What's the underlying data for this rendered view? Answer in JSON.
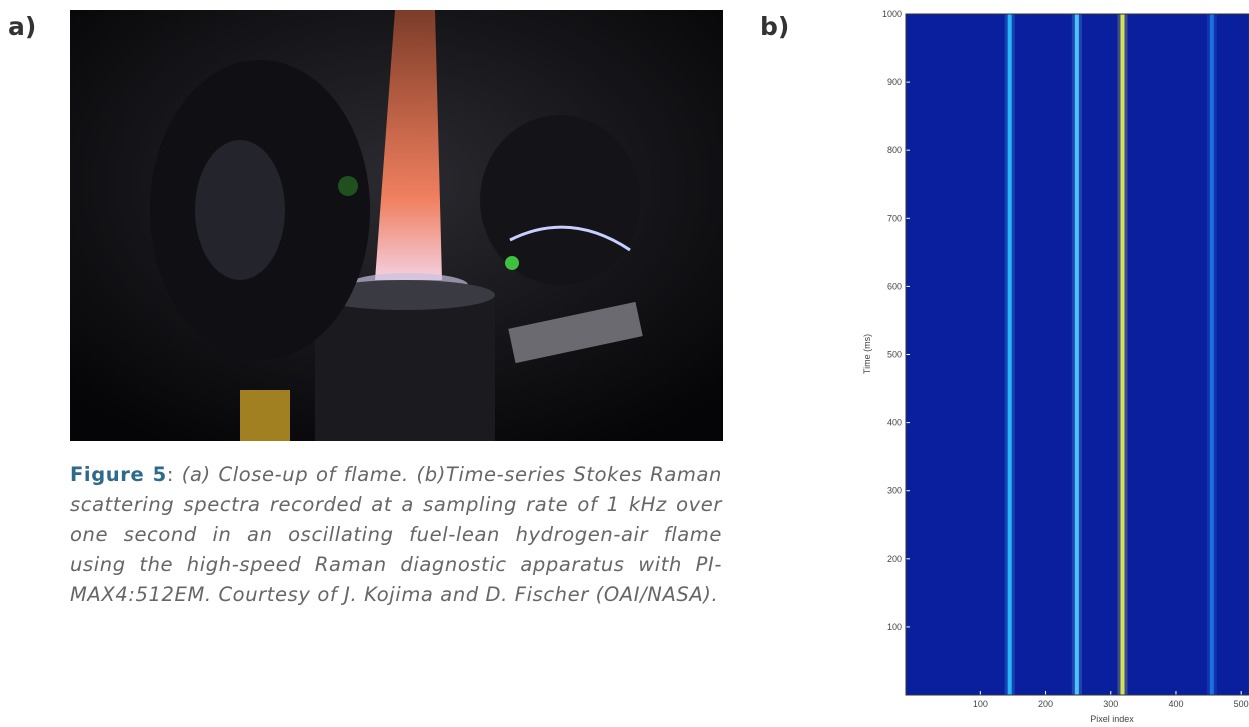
{
  "panel_a": {
    "label": "a)"
  },
  "panel_b": {
    "label": "b)"
  },
  "caption": {
    "figure": "Figure 5",
    "separator": ":",
    "text": "(a) Close-up of flame. (b)Time-series Stokes Raman scattering spectra recorded at a sampling rate of 1 kHz over one second in an oscillating fuel-lean hydrogen-air flame using the high-speed Raman diagnostic apparatus with PI-MAX4:512EM. Courtesy of J. Kojima and D. Fischer (OAI/NASA)."
  },
  "chart_data": {
    "type": "heatmap-lines",
    "xlabel": "Pixel index",
    "ylabel": "Time (ms)",
    "xlim": [
      -14,
      512
    ],
    "ylim": [
      0,
      1000
    ],
    "xticks": [
      100,
      200,
      300,
      400,
      500
    ],
    "yticks": [
      100,
      200,
      300,
      400,
      500,
      600,
      700,
      800,
      900,
      1000
    ],
    "background": "#0a1f9e",
    "series": [
      {
        "x": 145,
        "color": "#29b6f6"
      },
      {
        "x": 248,
        "color": "#4fc3f7"
      },
      {
        "x": 318,
        "color": "#d4e157"
      },
      {
        "x": 455,
        "color": "#1e6fe0"
      }
    ]
  }
}
